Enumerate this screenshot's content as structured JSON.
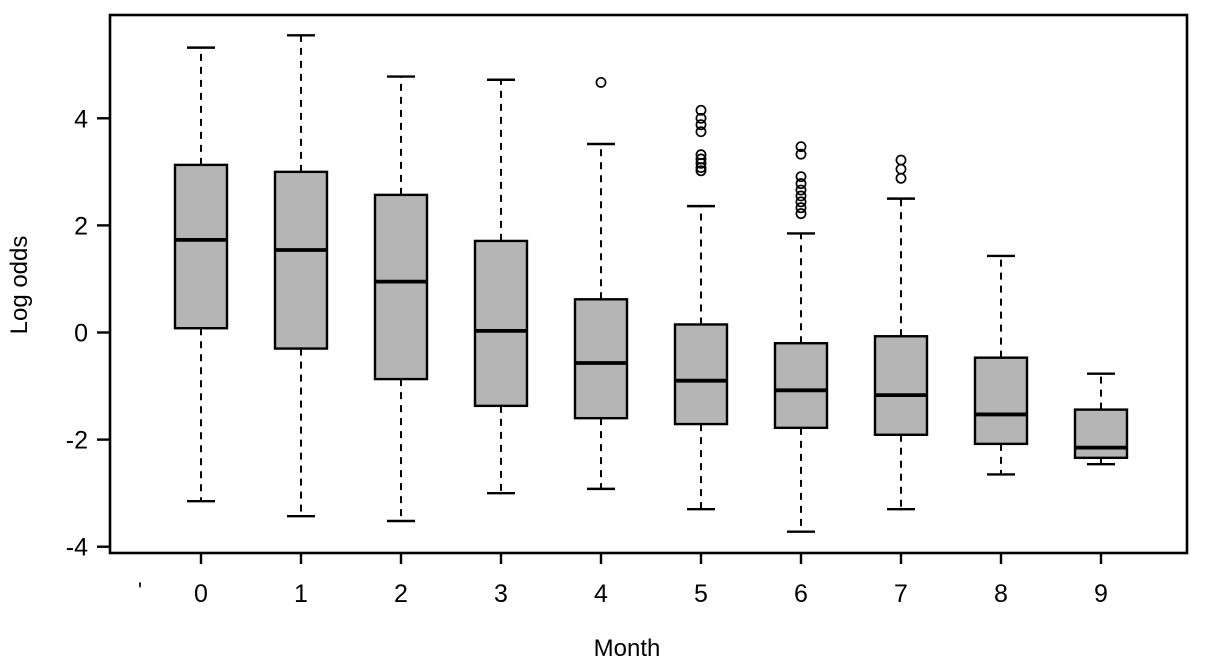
{
  "figure": {
    "background_color": "#ffffff",
    "line_color": "#000000",
    "box_fill_color": "#b5b5b5"
  },
  "chart_data": {
    "type": "boxplot",
    "title": "",
    "xlabel": "Month",
    "ylabel": "Log odds",
    "categories": [
      "0",
      "1",
      "2",
      "3",
      "4",
      "5",
      "6",
      "7",
      "8",
      "9"
    ],
    "y_ticks": [
      -4,
      -2,
      0,
      2,
      4
    ],
    "ylim": [
      -4.1,
      5.9
    ],
    "grid": "off",
    "legend": "none",
    "x_axis_stray_label": "'",
    "boxes": [
      {
        "month": "0",
        "low": -3.15,
        "q1": 0.08,
        "median": 1.73,
        "q3": 3.13,
        "high": 5.32,
        "outliers": []
      },
      {
        "month": "1",
        "low": -3.43,
        "q1": -0.3,
        "median": 1.54,
        "q3": 3.0,
        "high": 5.55,
        "outliers": []
      },
      {
        "month": "2",
        "low": -3.52,
        "q1": -0.87,
        "median": 0.95,
        "q3": 2.57,
        "high": 4.78,
        "outliers": []
      },
      {
        "month": "3",
        "low": -3.0,
        "q1": -1.37,
        "median": 0.03,
        "q3": 1.71,
        "high": 4.72,
        "outliers": []
      },
      {
        "month": "4",
        "low": -2.92,
        "q1": -1.6,
        "median": -0.57,
        "q3": 0.62,
        "high": 3.52,
        "outliers": [
          4.67
        ]
      },
      {
        "month": "5",
        "low": -3.3,
        "q1": -1.71,
        "median": -0.9,
        "q3": 0.15,
        "high": 2.36,
        "outliers": [
          4.15,
          4.0,
          3.88,
          3.75,
          3.32,
          3.24,
          3.16,
          3.08,
          3.02
        ]
      },
      {
        "month": "6",
        "low": -3.72,
        "q1": -1.78,
        "median": -1.08,
        "q3": -0.2,
        "high": 1.85,
        "outliers": [
          3.47,
          3.33,
          2.91,
          2.78,
          2.66,
          2.55,
          2.44,
          2.33,
          2.22
        ]
      },
      {
        "month": "7",
        "low": -3.3,
        "q1": -1.91,
        "median": -1.17,
        "q3": -0.07,
        "high": 2.5,
        "outliers": [
          3.22,
          3.05,
          2.88
        ]
      },
      {
        "month": "8",
        "low": -2.65,
        "q1": -2.08,
        "median": -1.53,
        "q3": -0.47,
        "high": 1.43,
        "outliers": []
      },
      {
        "month": "9",
        "low": -2.46,
        "q1": -2.34,
        "median": -2.15,
        "q3": -1.44,
        "high": -0.77,
        "outliers": []
      }
    ]
  }
}
